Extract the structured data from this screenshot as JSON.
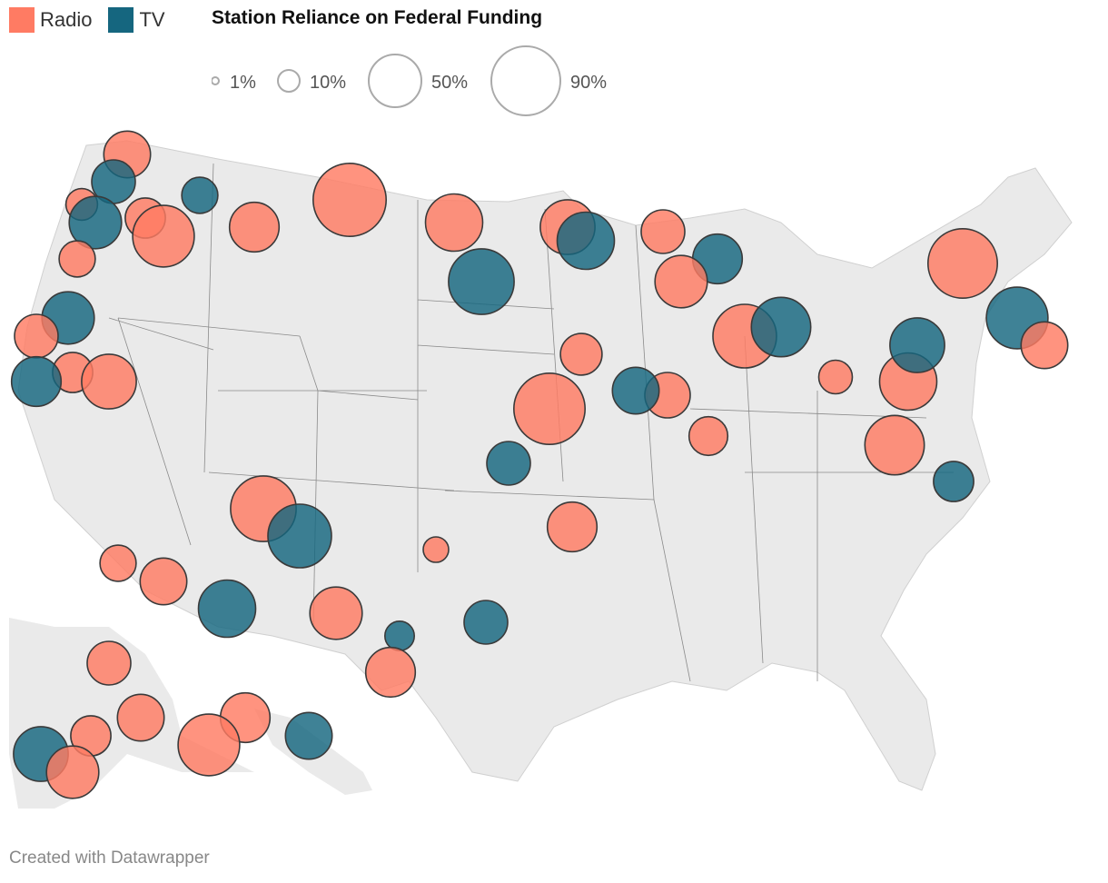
{
  "legend": {
    "types": [
      {
        "key": "radio",
        "label": "Radio",
        "color": "#ff7b63"
      },
      {
        "key": "tv",
        "label": "TV",
        "color": "#15667f"
      }
    ],
    "size_title": "Station Reliance on Federal Funding",
    "size_items": [
      {
        "label": "1%",
        "value": 1
      },
      {
        "label": "10%",
        "value": 10
      },
      {
        "label": "50%",
        "value": 50
      },
      {
        "label": "90%",
        "value": 90
      }
    ]
  },
  "colors": {
    "radio": "#ff7b63",
    "tv": "#15667f",
    "land": "#eaeaea",
    "border": "#7a7a7a"
  },
  "stations": [
    {
      "type": "radio",
      "reliance": 30
    },
    {
      "type": "tv",
      "reliance": 25
    },
    {
      "type": "radio",
      "reliance": 10
    },
    {
      "type": "radio",
      "reliance": 20
    },
    {
      "type": "radio",
      "reliance": 60
    },
    {
      "type": "tv",
      "reliance": 15
    },
    {
      "type": "radio",
      "reliance": 35
    },
    {
      "type": "tv",
      "reliance": 40
    },
    {
      "type": "radio",
      "reliance": 15
    },
    {
      "type": "radio",
      "reliance": 90
    },
    {
      "type": "radio",
      "reliance": 50
    },
    {
      "type": "tv",
      "reliance": 70
    },
    {
      "type": "radio",
      "reliance": 45
    },
    {
      "type": "tv",
      "reliance": 50
    },
    {
      "type": "radio",
      "reliance": 25
    },
    {
      "type": "tv",
      "reliance": 35
    },
    {
      "type": "radio",
      "reliance": 40
    },
    {
      "type": "radio",
      "reliance": 65
    },
    {
      "type": "tv",
      "reliance": 55
    },
    {
      "type": "radio",
      "reliance": 12
    },
    {
      "type": "radio",
      "reliance": 50
    },
    {
      "type": "radio",
      "reliance": 80
    },
    {
      "type": "tv",
      "reliance": 60
    },
    {
      "type": "radio",
      "reliance": 30
    },
    {
      "type": "tv",
      "reliance": 45
    },
    {
      "type": "radio",
      "reliance": 55
    },
    {
      "type": "tv",
      "reliance": 20
    },
    {
      "type": "radio",
      "reliance": 18
    },
    {
      "type": "radio",
      "reliance": 28
    },
    {
      "type": "tv",
      "reliance": 30
    },
    {
      "type": "radio",
      "reliance": 22
    },
    {
      "type": "radio",
      "reliance": 85
    },
    {
      "type": "tv",
      "reliance": 25
    },
    {
      "type": "radio",
      "reliance": 35
    },
    {
      "type": "radio",
      "reliance": 5
    },
    {
      "type": "tv",
      "reliance": 8
    },
    {
      "type": "radio",
      "reliance": 70
    },
    {
      "type": "tv",
      "reliance": 65
    },
    {
      "type": "radio",
      "reliance": 40
    },
    {
      "type": "radio",
      "reliance": 30
    },
    {
      "type": "tv",
      "reliance": 40
    },
    {
      "type": "radio",
      "reliance": 25
    },
    {
      "type": "radio",
      "reliance": 20
    },
    {
      "type": "tv",
      "reliance": 35
    },
    {
      "type": "radio",
      "reliance": 45
    },
    {
      "type": "radio",
      "reliance": 15
    },
    {
      "type": "tv",
      "reliance": 50
    },
    {
      "type": "radio",
      "reliance": 35
    },
    {
      "type": "radio",
      "reliance": 60
    },
    {
      "type": "tv",
      "reliance": 30
    },
    {
      "type": "radio",
      "reliance": 25
    },
    {
      "type": "radio",
      "reliance": 20
    },
    {
      "type": "tv",
      "reliance": 45
    },
    {
      "type": "radio",
      "reliance": 40
    },
    {
      "type": "radio",
      "reliance": 30
    },
    {
      "type": "tv",
      "reliance": 25
    },
    {
      "type": "radio",
      "reliance": 35
    }
  ],
  "footer": "Created with Datawrapper"
}
